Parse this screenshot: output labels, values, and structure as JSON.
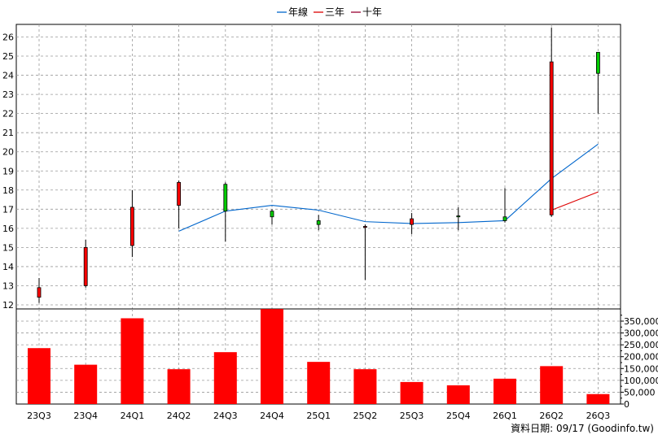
{
  "chart_data": {
    "type": "candlestick",
    "categories": [
      "23Q3",
      "23Q4",
      "24Q1",
      "24Q2",
      "24Q3",
      "24Q4",
      "25Q1",
      "25Q2",
      "25Q3",
      "25Q4",
      "26Q1",
      "26Q2",
      "26Q3"
    ],
    "price_axis": {
      "ylim": [
        12,
        26.5
      ],
      "ticks": [
        12,
        13,
        14,
        15,
        16,
        17,
        18,
        19,
        20,
        21,
        22,
        23,
        24,
        25,
        26
      ]
    },
    "volume_axis": {
      "ylim": [
        0,
        390000
      ],
      "ticks": [
        0,
        50000,
        100000,
        150000,
        200000,
        250000,
        300000,
        350000
      ],
      "tick_labels": [
        "0",
        "50,000",
        "100,000",
        "150,000",
        "200,000",
        "250,000",
        "300,000",
        "350,000"
      ]
    },
    "candles": [
      {
        "o": 12.9,
        "h": 13.4,
        "l": 12.1,
        "c": 12.4
      },
      {
        "o": 15.0,
        "h": 15.4,
        "l": 12.9,
        "c": 13.0
      },
      {
        "o": 17.1,
        "h": 18.0,
        "l": 14.5,
        "c": 15.1
      },
      {
        "o": 18.4,
        "h": 18.5,
        "l": 16.0,
        "c": 17.2
      },
      {
        "o": 16.9,
        "h": 18.4,
        "l": 15.3,
        "c": 18.3
      },
      {
        "o": 16.6,
        "h": 17.0,
        "l": 16.2,
        "c": 16.9
      },
      {
        "o": 16.2,
        "h": 16.7,
        "l": 15.9,
        "c": 16.4
      },
      {
        "o": 16.1,
        "h": 16.2,
        "l": 13.3,
        "c": 16.05
      },
      {
        "o": 16.5,
        "h": 16.8,
        "l": 15.7,
        "c": 16.2
      },
      {
        "o": 16.6,
        "h": 17.1,
        "l": 15.9,
        "c": 16.65
      },
      {
        "o": 16.4,
        "h": 18.1,
        "l": 16.3,
        "c": 16.6
      },
      {
        "o": 24.7,
        "h": 26.5,
        "l": 16.6,
        "c": 16.7
      },
      {
        "o": 24.1,
        "h": 25.2,
        "l": 22.0,
        "c": 25.2
      }
    ],
    "volume": [
      236000,
      166000,
      362000,
      147000,
      219000,
      401000,
      178000,
      147000,
      93000,
      79000,
      107000,
      160000,
      42000
    ],
    "series": [
      {
        "name": "年線",
        "color": "#0066cc",
        "values": [
          null,
          null,
          null,
          15.85,
          16.9,
          17.2,
          16.95,
          16.35,
          16.25,
          16.3,
          16.4,
          18.6,
          20.4
        ]
      },
      {
        "name": "三年",
        "color": "#dd0000",
        "values": [
          null,
          null,
          null,
          null,
          null,
          null,
          null,
          null,
          null,
          null,
          null,
          16.95,
          17.9
        ]
      },
      {
        "name": "十年",
        "color": "#990033",
        "values": [
          null,
          null,
          null,
          null,
          null,
          null,
          null,
          null,
          null,
          null,
          null,
          null,
          null
        ]
      }
    ],
    "colors": {
      "up": "#00cc00",
      "down": "#ff0000",
      "volume": "#ff0000",
      "grid": "#999999"
    },
    "grid": true,
    "legend_position": "top-center"
  },
  "footer": {
    "source": "資料日期: 09/17  (Goodinfo.tw)"
  }
}
